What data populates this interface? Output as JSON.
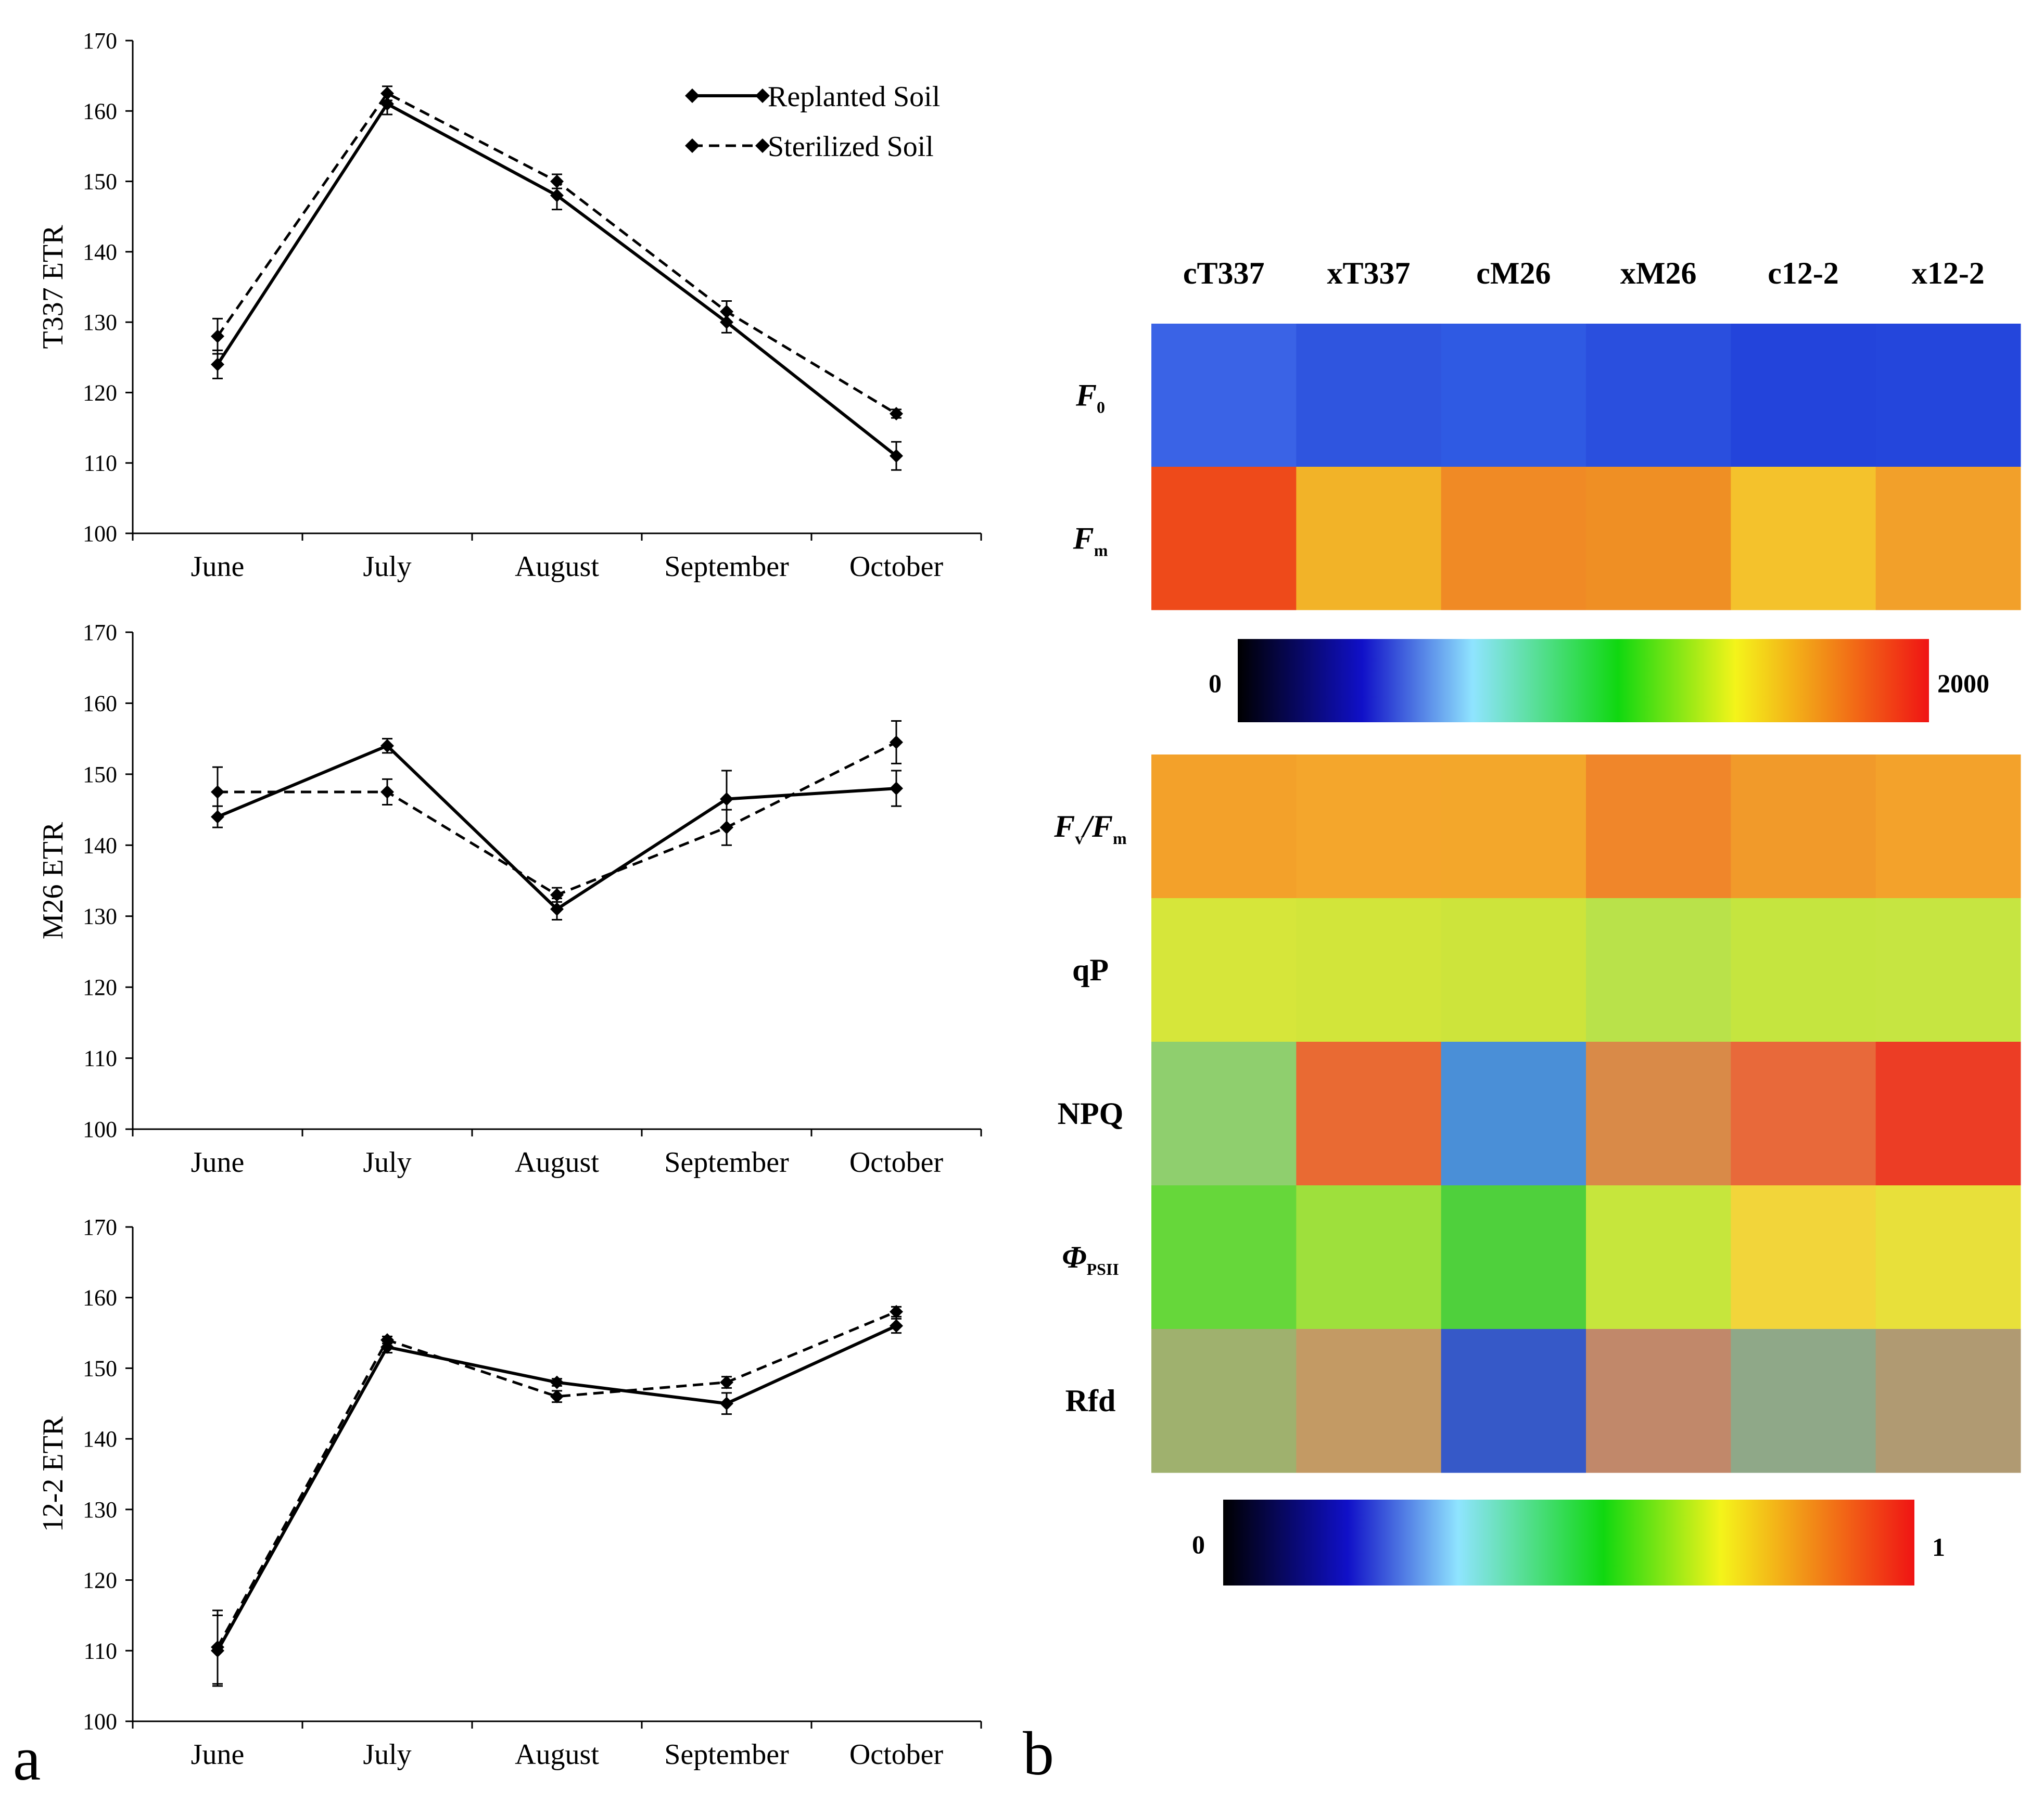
{
  "panel_a": {
    "letter": "a"
  },
  "panel_b": {
    "letter": "b"
  },
  "legend": {
    "replanted": "Replanted Soil",
    "sterilized": "Sterilized Soil"
  },
  "chart_data": [
    {
      "type": "line",
      "ylabel": "T337 ETR",
      "categories": [
        "June",
        "July",
        "August",
        "September",
        "October"
      ],
      "ylim": [
        100,
        170
      ],
      "yticks": [
        "100",
        "110",
        "120",
        "130",
        "140",
        "150",
        "160",
        "170"
      ],
      "series": [
        {
          "name": "Replanted Soil",
          "style": "solid",
          "values": [
            124,
            161,
            148,
            130,
            111
          ],
          "errors": [
            2,
            1.5,
            2,
            1.5,
            2
          ]
        },
        {
          "name": "Sterilized Soil",
          "style": "dashed",
          "values": [
            128,
            162.5,
            150,
            131.5,
            117
          ],
          "errors": [
            2.5,
            1,
            1,
            1.5,
            0.6
          ]
        }
      ]
    },
    {
      "type": "line",
      "ylabel": "M26 ETR",
      "categories": [
        "June",
        "July",
        "August",
        "September",
        "October"
      ],
      "ylim": [
        100,
        170
      ],
      "yticks": [
        "100",
        "110",
        "120",
        "130",
        "140",
        "150",
        "160",
        "170"
      ],
      "series": [
        {
          "name": "Replanted Soil",
          "style": "solid",
          "values": [
            144,
            154,
            131,
            146.5,
            148
          ],
          "errors": [
            1.5,
            1,
            1.5,
            4,
            2.5
          ]
        },
        {
          "name": "Sterilized Soil",
          "style": "dashed",
          "values": [
            147.5,
            147.5,
            133,
            142.5,
            154.5
          ],
          "errors": [
            3.5,
            1.8,
            1,
            2.5,
            3
          ]
        }
      ]
    },
    {
      "type": "line",
      "ylabel": "12-2 ETR",
      "categories": [
        "June",
        "July",
        "August",
        "September",
        "October"
      ],
      "ylim": [
        100,
        170
      ],
      "yticks": [
        "100",
        "110",
        "120",
        "130",
        "140",
        "150",
        "160",
        "170"
      ],
      "series": [
        {
          "name": "Replanted Soil",
          "style": "solid",
          "values": [
            110,
            153,
            148,
            145,
            156
          ],
          "errors": [
            5,
            0.8,
            0.5,
            1.5,
            1
          ]
        },
        {
          "name": "Sterilized Soil",
          "style": "dashed",
          "values": [
            110.5,
            154,
            146,
            148,
            158
          ],
          "errors": [
            5.2,
            0.5,
            0.8,
            0.8,
            0.7
          ]
        }
      ]
    }
  ],
  "heatmap": {
    "columns": [
      "cT337",
      "xT337",
      "cM26",
      "xM26",
      "c12-2",
      "x12-2"
    ],
    "group1_rows": [
      "F0",
      "Fm"
    ],
    "group2_rows": [
      "Fv/Fm",
      "qP",
      "NPQ",
      "ΦPSII",
      "Rfd"
    ],
    "colorbar1": {
      "min": "0",
      "max": "2000"
    },
    "colorbar2": {
      "min": "0",
      "max": "1"
    },
    "colors": {
      "F0": [
        "#3a63e6",
        "#2f55df",
        "#2f5ae3",
        "#2a4fde",
        "#2344db",
        "#2446dc"
      ],
      "Fm": [
        "#ee4a1a",
        "#f2b328",
        "#f08a25",
        "#ef8f24",
        "#f4c22c",
        "#f2a02a"
      ],
      "Fv/Fm": [
        "#f3a12a",
        "#f4a62c",
        "#f3a72b",
        "#f0862a",
        "#f19a2a",
        "#f3a22b"
      ],
      "qP": [
        "#d6e63a",
        "#d2e53a",
        "#cde43b",
        "#b9e24a",
        "#c5e53f",
        "#c6e541"
      ],
      "NPQ": [
        "#8fcf6e",
        "#e96a33",
        "#4a8fd7",
        "#d98a48",
        "#e8693a",
        "#ec3d25"
      ],
      "ΦPSII": [
        "#66d73a",
        "#9ee03c",
        "#4fd03c",
        "#c6e63c",
        "#f2d53a",
        "#e8e03a"
      ],
      "Rfd": [
        "#9fb16e",
        "#c39a64",
        "#3659c8",
        "#c1886a",
        "#8fa888",
        "#b09a72"
      ]
    }
  }
}
